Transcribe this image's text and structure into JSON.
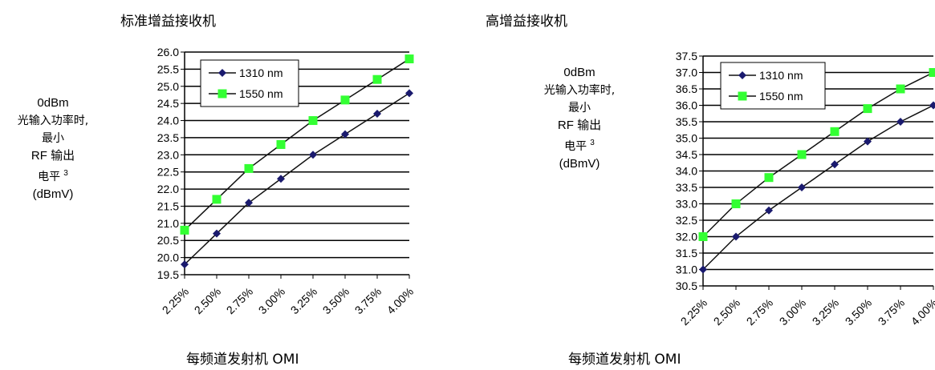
{
  "chart_data": [
    {
      "type": "line",
      "title": "标准增益接收机",
      "xlabel": "每频道发射机 OMI",
      "ylabel": {
        "line1": "0dBm",
        "line2": "光输入功率时,",
        "line3": "最小",
        "line4": "RF 输出",
        "line5": "电平",
        "sup": "3",
        "line6": "(dBmV)"
      },
      "categories": [
        "2.25%",
        "2.50%",
        "2.75%",
        "3.00%",
        "3.25%",
        "3.50%",
        "3.75%",
        "4.00%"
      ],
      "ylim": [
        19.5,
        26.0
      ],
      "ytick_step": 0.5,
      "grid": "horizontal",
      "legend_position": "top-left",
      "series": [
        {
          "name": "1310 nm",
          "values": [
            19.8,
            20.7,
            21.6,
            22.3,
            23.0,
            23.6,
            24.2,
            24.8
          ],
          "color": "#1a1a6e",
          "marker": "diamond"
        },
        {
          "name": "1550 nm",
          "values": [
            20.8,
            21.7,
            22.6,
            23.3,
            24.0,
            24.6,
            25.2,
            25.8
          ],
          "color": "#33ff33",
          "marker": "square"
        }
      ]
    },
    {
      "type": "line",
      "title": "高增益接收机",
      "xlabel": "每频道发射机 OMI",
      "ylabel": {
        "line1": "0dBm",
        "line2": "光输入功率时,",
        "line3": "最小",
        "line4": "RF 输出",
        "line5": "电平",
        "sup": "3",
        "line6": "(dBmV)"
      },
      "categories": [
        "2.25%",
        "2.50%",
        "2.75%",
        "3.00%",
        "3.25%",
        "3.50%",
        "3.75%",
        "4.00%"
      ],
      "ylim": [
        30.5,
        37.5
      ],
      "ytick_step": 0.5,
      "grid": "horizontal",
      "legend_position": "top-left",
      "series": [
        {
          "name": "1310 nm",
          "values": [
            31.0,
            32.0,
            32.8,
            33.5,
            34.2,
            34.9,
            35.5,
            36.0
          ],
          "color": "#1a1a6e",
          "marker": "diamond"
        },
        {
          "name": "1550 nm",
          "values": [
            32.0,
            33.0,
            33.8,
            34.5,
            35.2,
            35.9,
            36.5,
            37.0
          ],
          "color": "#33ff33",
          "marker": "square"
        }
      ]
    }
  ]
}
